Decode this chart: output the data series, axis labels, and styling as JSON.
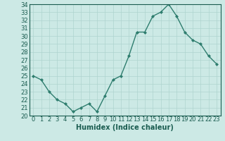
{
  "x": [
    0,
    1,
    2,
    3,
    4,
    5,
    6,
    7,
    8,
    9,
    10,
    11,
    12,
    13,
    14,
    15,
    16,
    17,
    18,
    19,
    20,
    21,
    22,
    23
  ],
  "y": [
    25.0,
    24.5,
    23.0,
    22.0,
    21.5,
    20.5,
    21.0,
    21.5,
    20.5,
    22.5,
    24.5,
    25.0,
    27.5,
    30.5,
    30.5,
    32.5,
    33.0,
    34.0,
    32.5,
    30.5,
    29.5,
    29.0,
    27.5,
    26.5
  ],
  "line_color": "#2e7d6e",
  "marker": "D",
  "marker_size": 2.0,
  "bg_color": "#cce9e5",
  "grid_color": "#aed4cf",
  "xlabel": "Humidex (Indice chaleur)",
  "ylim": [
    20,
    34
  ],
  "xlim": [
    -0.5,
    23.5
  ],
  "yticks": [
    20,
    21,
    22,
    23,
    24,
    25,
    26,
    27,
    28,
    29,
    30,
    31,
    32,
    33,
    34
  ],
  "xticks": [
    0,
    1,
    2,
    3,
    4,
    5,
    6,
    7,
    8,
    9,
    10,
    11,
    12,
    13,
    14,
    15,
    16,
    17,
    18,
    19,
    20,
    21,
    22,
    23
  ],
  "axis_color": "#1a5c50",
  "label_fontsize": 7,
  "tick_fontsize": 6,
  "linewidth": 1.0
}
